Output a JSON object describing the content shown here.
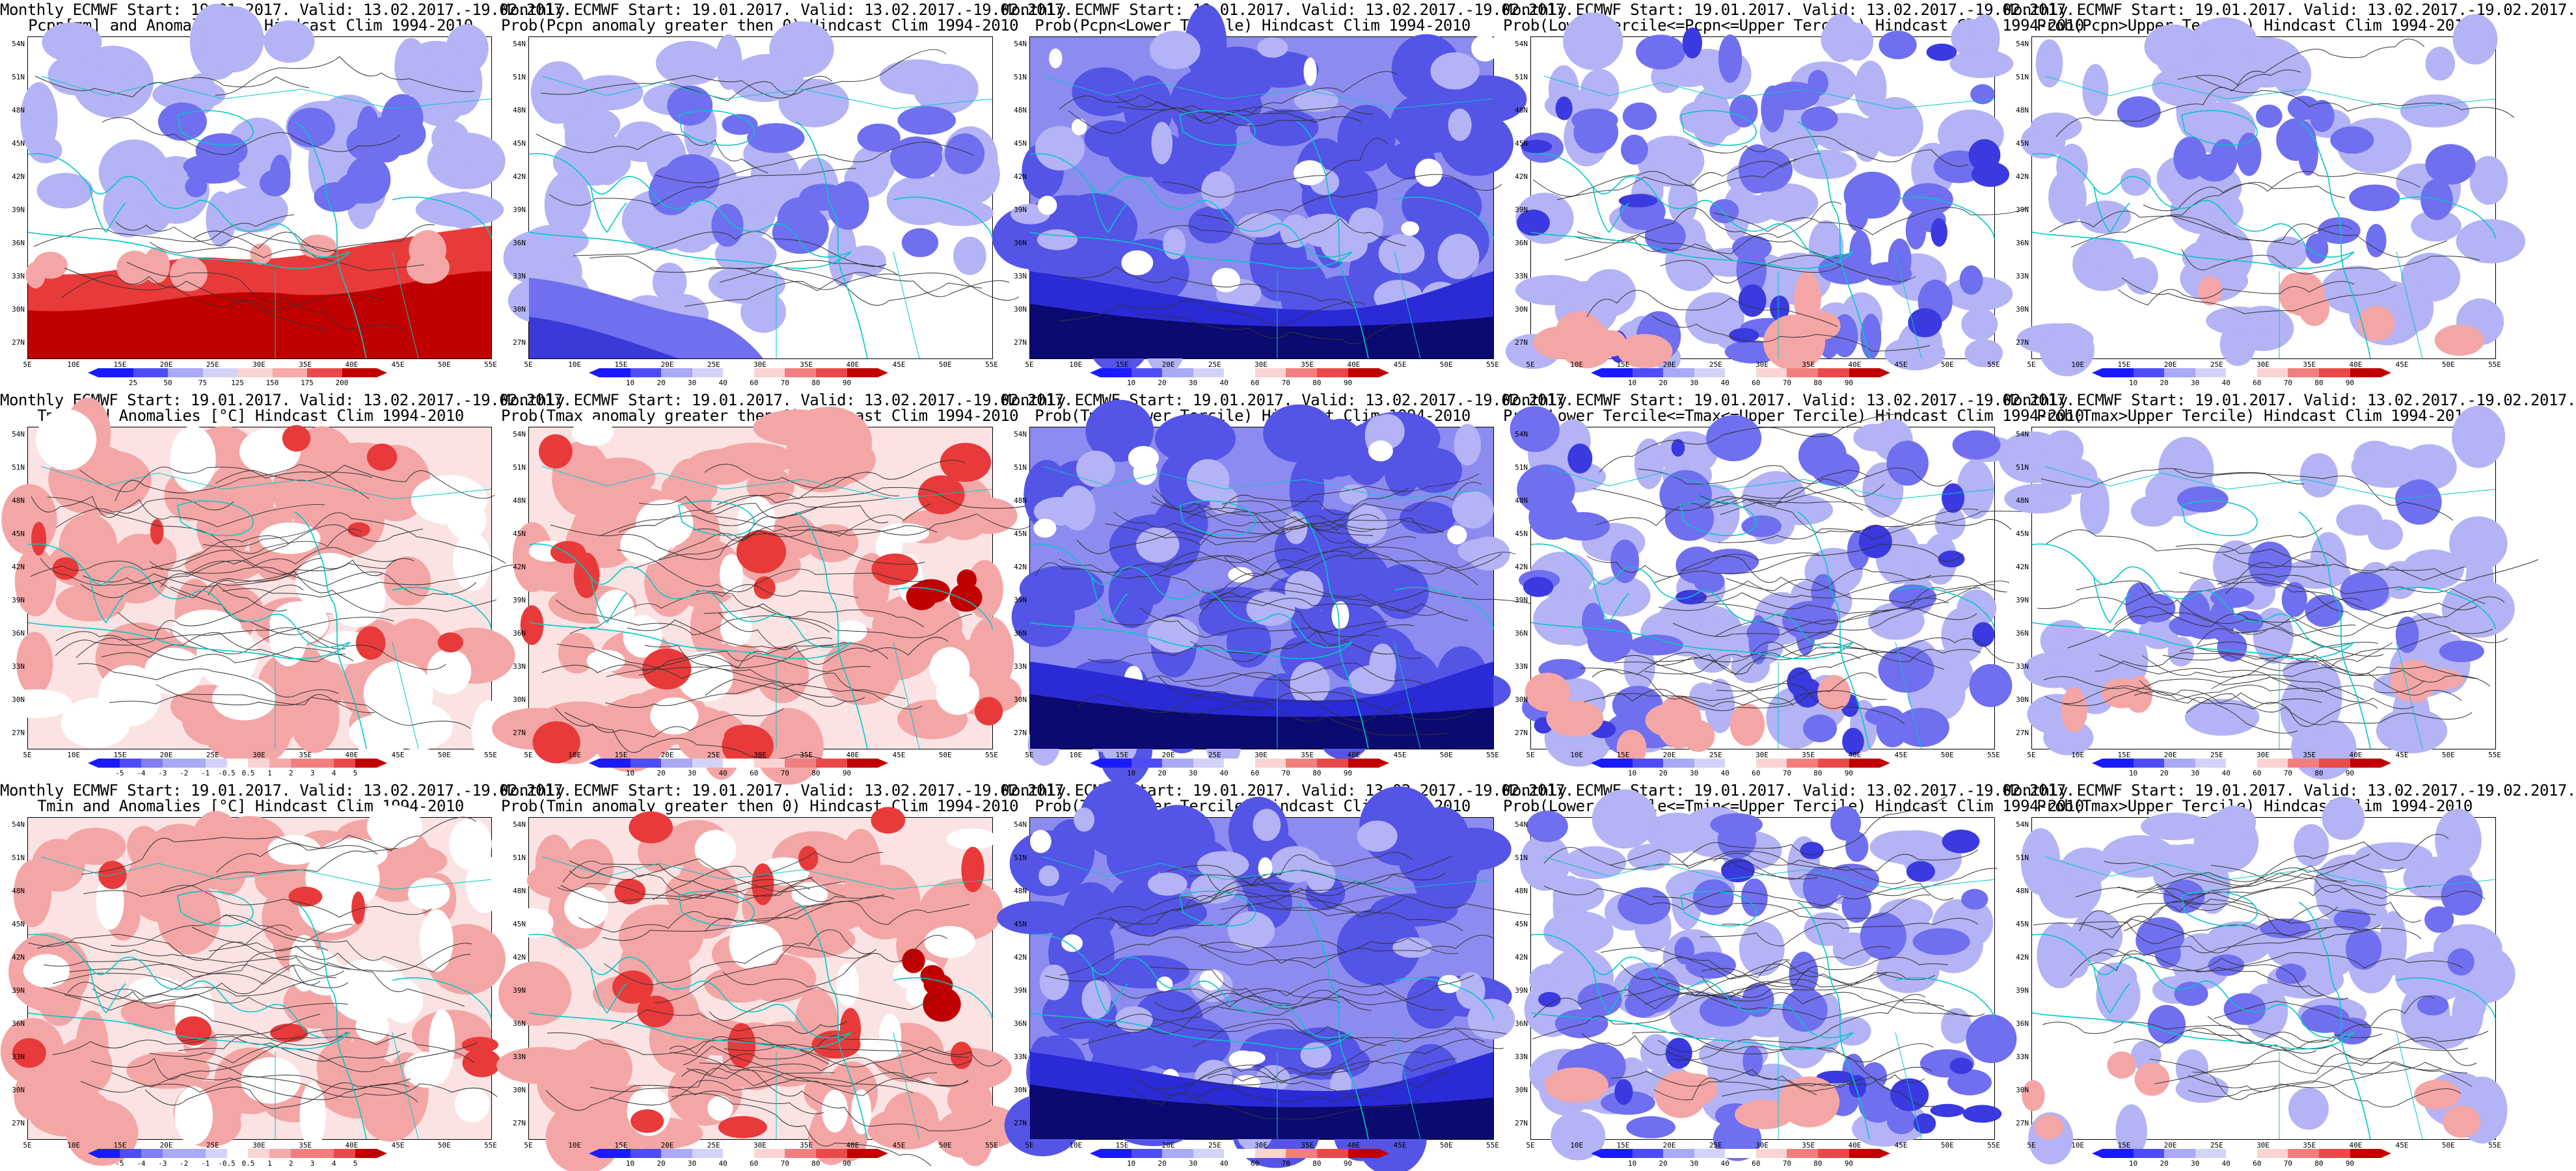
{
  "lat_labels": [
    "54N",
    "51N",
    "48N",
    "45N",
    "42N",
    "39N",
    "36N",
    "33N",
    "30N",
    "27N"
  ],
  "lon_labels": [
    "5E",
    "10E",
    "15E",
    "20E",
    "25E",
    "30E",
    "35E",
    "40E",
    "45E",
    "50E",
    "55E"
  ],
  "colors": {
    "blue_strong": "#1a1aff",
    "blue_mid": "#6f6fef",
    "blue_light": "#b3b3f5",
    "red_strong": "#c00000",
    "red_mid": "#e83a3a",
    "red_light": "#f4a6a6",
    "coast": "#00c8c8"
  },
  "panels": [
    {
      "line1": "Monthly ECMWF Start: 19.01.2017. Valid: 13.02.2017.-19.02.2017.",
      "line2": "Pcpn[mm] and Anomalies[%] Hindcast Clim 1994-2010",
      "cbar_ticks": [
        "25",
        "50",
        "75",
        "125",
        "150",
        "175",
        "200"
      ],
      "scheme": "pcpn_anom"
    },
    {
      "line1": "Monthly ECMWF Start: 19.01.2017. Valid: 13.02.2017.-19.02.2017.",
      "line2": "Prob(Pcpn anomaly greater then 0) Hindcast Clim 1994-2010",
      "cbar_ticks": [
        "10",
        "20",
        "30",
        "40",
        "60",
        "70",
        "80",
        "90"
      ],
      "scheme": "blue_low"
    },
    {
      "line1": "Monthly ECMWF Start: 19.01.2017. Valid: 13.02.2017.-19.02.2017.",
      "line2": "Prob(Pcpn<Lower Tercile) Hindcast Clim 1994-2010",
      "cbar_ticks": [
        "10",
        "20",
        "30",
        "40",
        "60",
        "70",
        "80",
        "90"
      ],
      "scheme": "blue_deep"
    },
    {
      "line1": "Monthly ECMWF Start: 19.01.2017. Valid: 13.02.2017.-19.02.2017.",
      "line2": "Prob(Lower Tercile<=Pcpn<=Upper Tercile) Hindcast Clim 1994-2010",
      "cbar_ticks": [
        "10",
        "20",
        "30",
        "40",
        "60",
        "70",
        "80",
        "90"
      ],
      "scheme": "blue_mix"
    },
    {
      "line1": "Monthly ECMWF Start: 19.01.2017. Valid: 13.02.2017.-19.02.2017.",
      "line2": "Prob(Pcpn>Upper Tercile) Hindcast Clim 1994-2010",
      "cbar_ticks": [
        "10",
        "20",
        "30",
        "40",
        "60",
        "70",
        "80",
        "90"
      ],
      "scheme": "blue_light"
    },
    {
      "line1": "Monthly ECMWF Start: 19.01.2017. Valid: 13.02.2017.-19.02.2017.",
      "line2": "Tmax and Anomalies [°C] Hindcast Clim 1994-2010",
      "cbar_ticks": [
        "-5",
        "-4",
        "-3",
        "-2",
        "-1",
        "-0.5",
        "0.5",
        "1",
        "2",
        "3",
        "4",
        "5"
      ],
      "scheme": "red_light"
    },
    {
      "line1": "Monthly ECMWF Start: 19.01.2017. Valid: 13.02.2017.-19.02.2017.",
      "line2": "Prob(Tmax anomaly greater then 0) Hindcast Clim 1994-2010",
      "cbar_ticks": [
        "10",
        "20",
        "30",
        "40",
        "60",
        "70",
        "80",
        "90"
      ],
      "scheme": "red_mid"
    },
    {
      "line1": "Monthly ECMWF Start: 19.01.2017. Valid: 13.02.2017.-19.02.2017.",
      "line2": "Prob(Tmax<Lower Tercile) Hindcast Clim 1994-2010",
      "cbar_ticks": [
        "10",
        "20",
        "30",
        "40",
        "60",
        "70",
        "80",
        "90"
      ],
      "scheme": "blue_deep"
    },
    {
      "line1": "Monthly ECMWF Start: 19.01.2017. Valid: 13.02.2017.-19.02.2017.",
      "line2": "Prob(Lower Tercile<=Tmax<=Upper Tercile) Hindcast Clim 1994-2010",
      "cbar_ticks": [
        "10",
        "20",
        "30",
        "40",
        "60",
        "70",
        "80",
        "90"
      ],
      "scheme": "blue_mix"
    },
    {
      "line1": "Monthly ECMWF Start: 19.01.2017. Valid: 13.02.2017.-19.02.2017.",
      "line2": "Prob(Tmax>Upper Tercile) Hindcast Clim 1994-2010",
      "cbar_ticks": [
        "10",
        "20",
        "30",
        "40",
        "60",
        "70",
        "80",
        "90"
      ],
      "scheme": "blue_light"
    },
    {
      "line1": "Monthly ECMWF Start: 19.01.2017. Valid: 13.02.2017.-19.02.2017.",
      "line2": "Tmin and Anomalies [°C] Hindcast Clim 1994-2010",
      "cbar_ticks": [
        "-5",
        "-4",
        "-3",
        "-2",
        "-1",
        "-0.5",
        "0.5",
        "1",
        "2",
        "3",
        "4",
        "5"
      ],
      "scheme": "red_light"
    },
    {
      "line1": "Monthly ECMWF Start: 19.01.2017. Valid: 13.02.2017.-19.02.2017.",
      "line2": "Prob(Tmin anomaly greater then 0) Hindcast Clim 1994-2010",
      "cbar_ticks": [
        "10",
        "20",
        "30",
        "40",
        "60",
        "70",
        "80",
        "90"
      ],
      "scheme": "red_mid"
    },
    {
      "line1": "Monthly ECMWF Start: 19.01.2017. Valid: 13.02.2017.-19.02.2017.",
      "line2": "Prob(Tmin<Lower Tercile) Hindcast Clim 1994-2010",
      "cbar_ticks": [
        "10",
        "20",
        "30",
        "40",
        "60",
        "70",
        "80",
        "90"
      ],
      "scheme": "blue_deep"
    },
    {
      "line1": "Monthly ECMWF Start: 19.01.2017. Valid: 13.02.2017.-19.02.2017.",
      "line2": "Prob(Lower Tercile<=Tmin<=Upper Tercile) Hindcast Clim 1994-2010",
      "cbar_ticks": [
        "10",
        "20",
        "30",
        "40",
        "60",
        "70",
        "80",
        "90"
      ],
      "scheme": "blue_mix"
    },
    {
      "line1": "Monthly ECMWF Start: 19.01.2017. Valid: 13.02.2017.-19.02.2017.",
      "line2": "Prob(Tmax>Upper Tercile) Hindcast Clim 1994-2010",
      "cbar_ticks": [
        "10",
        "20",
        "30",
        "40",
        "60",
        "70",
        "80",
        "90"
      ],
      "scheme": "blue_light"
    }
  ]
}
